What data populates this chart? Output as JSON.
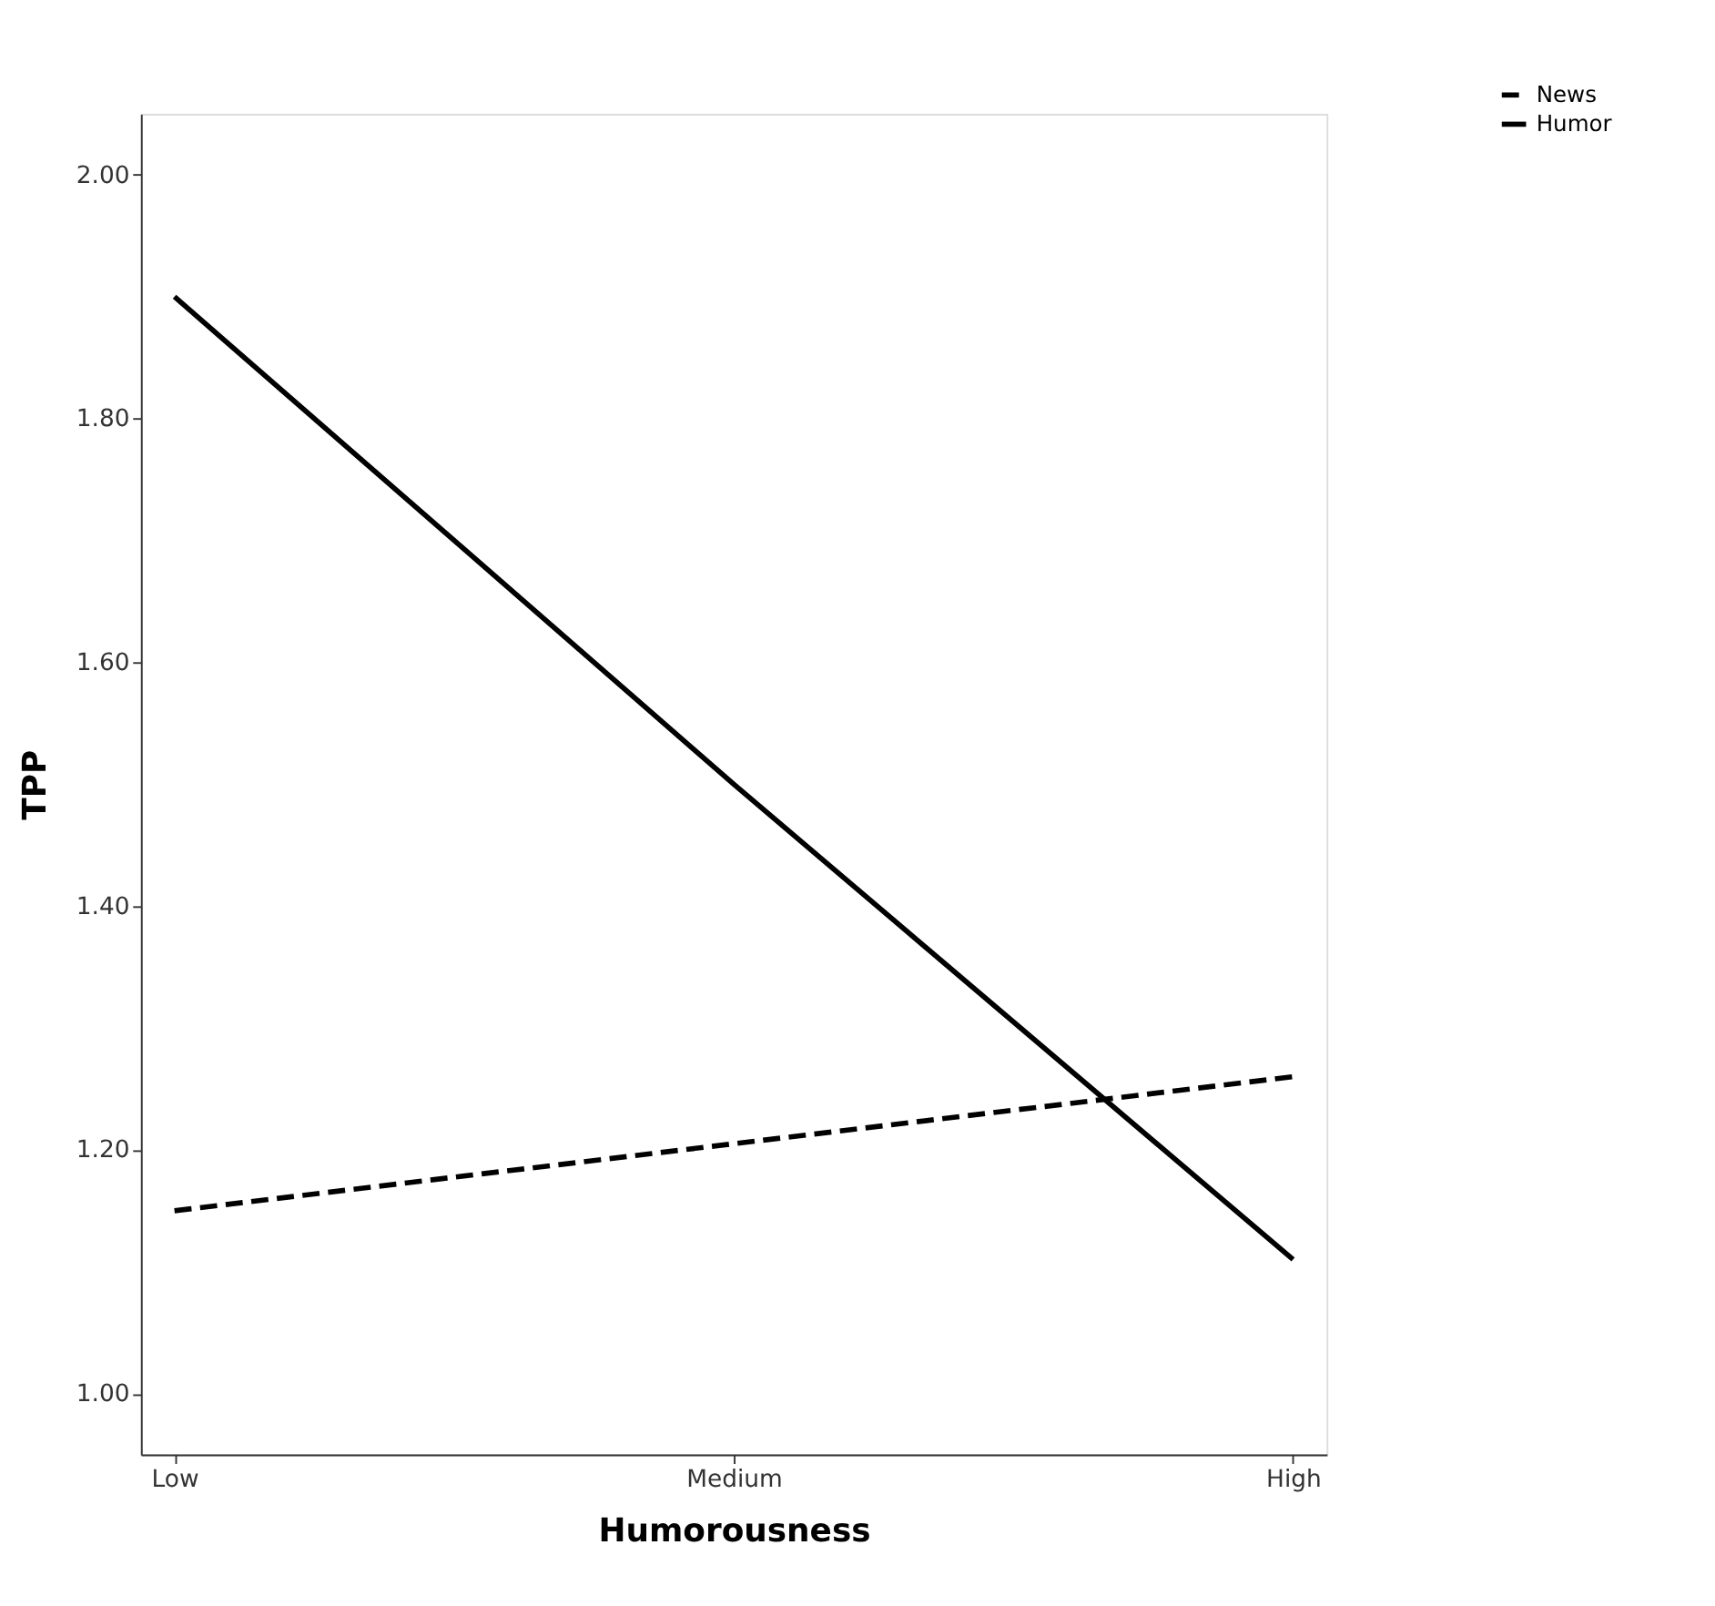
{
  "chart_data": {
    "type": "line",
    "xlabel": "Humorousness",
    "ylabel": "TPP",
    "categories": [
      "Low",
      "Medium",
      "High"
    ],
    "series": [
      {
        "name": "News",
        "color": "#000000",
        "line_style": "dashed",
        "values": [
          1.15,
          1.205,
          1.26
        ]
      },
      {
        "name": "Humor",
        "color": "#000000",
        "line_style": "solid",
        "values": [
          1.9,
          1.5,
          1.11
        ]
      }
    ],
    "ylim": [
      0.95,
      2.05
    ],
    "yticks": [
      {
        "value": 1.0,
        "label": "1.00"
      },
      {
        "value": 1.2,
        "label": "1.20"
      },
      {
        "value": 1.4,
        "label": "1.40"
      },
      {
        "value": 1.6,
        "label": "1.60"
      },
      {
        "value": 1.8,
        "label": "1.80"
      },
      {
        "value": 2.0,
        "label": "2.00"
      }
    ],
    "grid": false,
    "legend": "top right",
    "marker": "none"
  }
}
